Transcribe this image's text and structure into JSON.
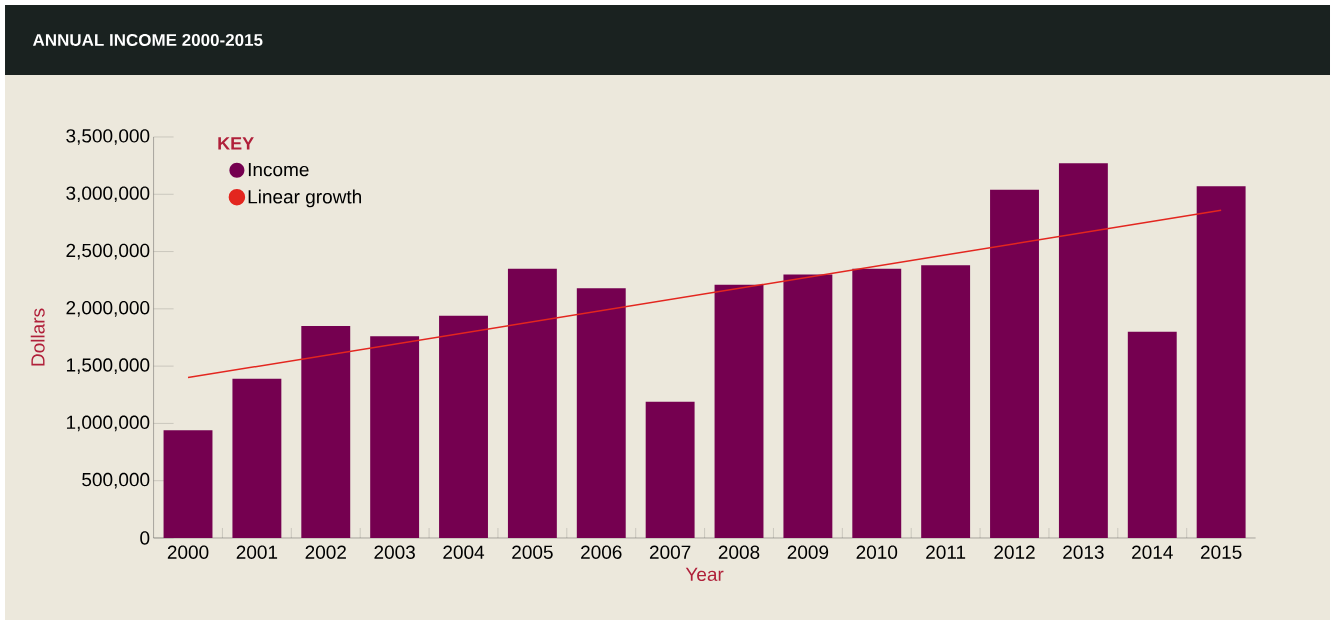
{
  "chart_data": {
    "type": "bar",
    "title": "ANNUAL INCOME 2000-2015",
    "xlabel": "Year",
    "ylabel": "Dollars",
    "legend_title": "KEY",
    "legend": "top left",
    "categories": [
      "2000",
      "2001",
      "2002",
      "2003",
      "2004",
      "2005",
      "2006",
      "2007",
      "2008",
      "2009",
      "2010",
      "2011",
      "2012",
      "2013",
      "2014",
      "2015"
    ],
    "series": [
      {
        "name": "Income",
        "color": "#750050",
        "values": [
          940000,
          1390000,
          1850000,
          1760000,
          1940000,
          2350000,
          2180000,
          1190000,
          2210000,
          2300000,
          2350000,
          2380000,
          3040000,
          3270000,
          1800000,
          3070000
        ]
      },
      {
        "name": "Linear growth",
        "type": "line",
        "color": "#e3261f",
        "values": [
          1400000,
          null,
          null,
          null,
          null,
          null,
          null,
          null,
          null,
          null,
          null,
          null,
          null,
          null,
          null,
          2860000
        ]
      }
    ],
    "ylim": [
      0,
      3500000
    ],
    "yticks": [
      0,
      {
        "value": 500000,
        "label": "500,000"
      },
      {
        "value": 1000000,
        "label": "1,000,000"
      },
      {
        "value": 1500000,
        "label": "1,500,000"
      },
      {
        "value": 2000000,
        "label": "2,000,000"
      },
      {
        "value": 2500000,
        "label": "2,500,000"
      },
      {
        "value": 3000000,
        "label": "3,000,000"
      },
      {
        "value": 3500000,
        "label": "3,500,000"
      }
    ],
    "grid": false
  }
}
